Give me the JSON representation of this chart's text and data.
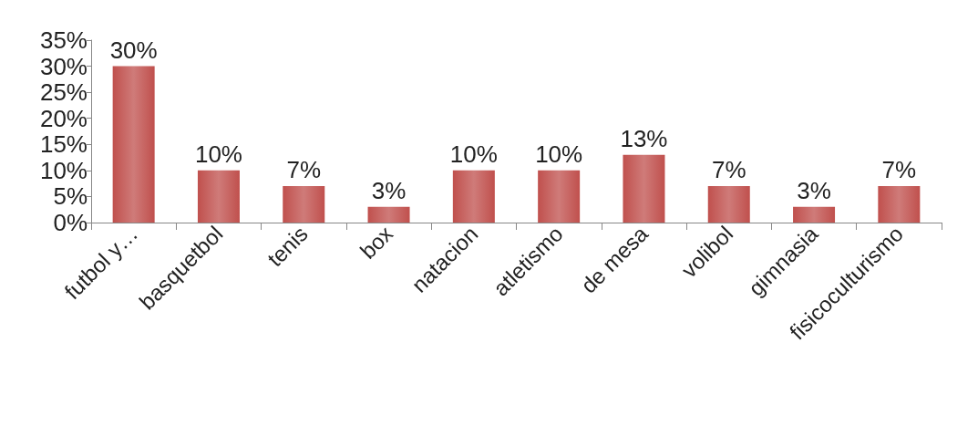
{
  "chart_data": {
    "type": "bar",
    "categories": [
      "futbol y…",
      "basquetbol",
      "tenis",
      "box",
      "natacion",
      "atletismo",
      "de mesa",
      "volibol",
      "gimnasia",
      "fisicoculturismo"
    ],
    "values": [
      30,
      10,
      7,
      3,
      10,
      10,
      13,
      7,
      3,
      7
    ],
    "value_labels": [
      "30%",
      "10%",
      "7%",
      "3%",
      "10%",
      "10%",
      "13%",
      "7%",
      "3%",
      "7%"
    ],
    "color": "#c0504d",
    "ylim": [
      0,
      35
    ],
    "yticks": [
      {
        "value": 0,
        "label": "0%"
      },
      {
        "value": 5,
        "label": "5%"
      },
      {
        "value": 10,
        "label": "10%"
      },
      {
        "value": 15,
        "label": "15%"
      },
      {
        "value": 20,
        "label": "20%"
      },
      {
        "value": 25,
        "label": "25%"
      },
      {
        "value": 30,
        "label": "30%"
      },
      {
        "value": 35,
        "label": "35%"
      }
    ],
    "grid": false
  }
}
